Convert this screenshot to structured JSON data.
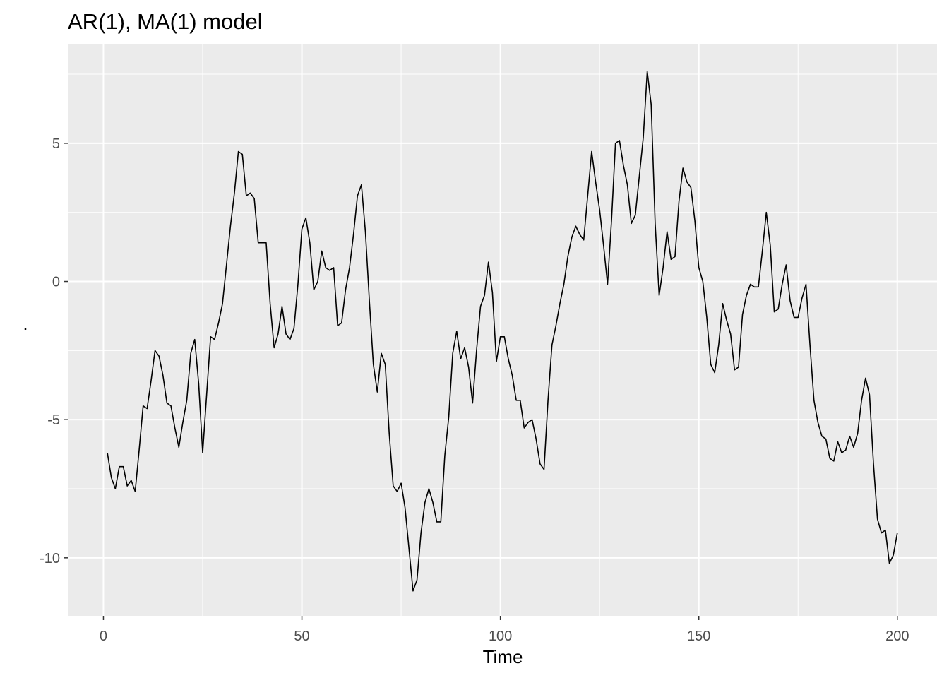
{
  "chart_data": {
    "type": "line",
    "title": "AR(1), MA(1) model",
    "xlabel": "Time",
    "ylabel": ".",
    "xlim": [
      -8.8,
      210
    ],
    "ylim": [
      -12.1,
      8.6
    ],
    "x_ticks": [
      0,
      50,
      100,
      150,
      200
    ],
    "x_tick_labels": [
      "0",
      "50",
      "100",
      "150",
      "200"
    ],
    "y_ticks": [
      -10,
      -5,
      0,
      5
    ],
    "y_tick_labels": [
      "-10",
      "-5",
      "0",
      "5"
    ],
    "grid": true,
    "legend": "none",
    "colors": {
      "panel": "#ebebeb",
      "grid": "#ffffff",
      "line": "#000000",
      "tick_label": "#4d4d4d",
      "tick_mark": "#333333"
    },
    "series": [
      {
        "x_start": 1,
        "x_step": 1,
        "values": [
          -6.2,
          -7.1,
          -7.5,
          -6.7,
          -6.7,
          -7.4,
          -7.2,
          -7.6,
          -6.1,
          -4.5,
          -4.6,
          -3.6,
          -2.5,
          -2.7,
          -3.4,
          -4.4,
          -4.5,
          -5.3,
          -6.0,
          -5.1,
          -4.3,
          -2.6,
          -2.1,
          -3.7,
          -6.2,
          -4.1,
          -2.0,
          -2.1,
          -1.5,
          -0.8,
          0.6,
          2.0,
          3.2,
          4.7,
          4.6,
          3.1,
          3.2,
          3.0,
          1.4,
          1.4,
          1.4,
          -0.8,
          -2.4,
          -1.9,
          -0.9,
          -1.9,
          -2.1,
          -1.7,
          -0.1,
          1.9,
          2.3,
          1.4,
          -0.3,
          0.0,
          1.1,
          0.5,
          0.4,
          0.5,
          -1.6,
          -1.5,
          -0.3,
          0.5,
          1.7,
          3.1,
          3.5,
          1.8,
          -0.7,
          -3.0,
          -4.0,
          -2.6,
          -3.0,
          -5.5,
          -7.4,
          -7.6,
          -7.3,
          -8.2,
          -9.7,
          -11.2,
          -10.8,
          -9.1,
          -8.0,
          -7.5,
          -8.0,
          -8.7,
          -8.7,
          -6.3,
          -4.9,
          -2.6,
          -1.8,
          -2.8,
          -2.4,
          -3.1,
          -4.4,
          -2.5,
          -0.9,
          -0.5,
          0.7,
          -0.4,
          -2.9,
          -2.0,
          -2.0,
          -2.8,
          -3.4,
          -4.3,
          -4.3,
          -5.3,
          -5.1,
          -5.0,
          -5.7,
          -6.6,
          -6.8,
          -4.3,
          -2.3,
          -1.6,
          -0.8,
          -0.1,
          0.9,
          1.6,
          2.0,
          1.7,
          1.5,
          3.1,
          4.7,
          3.6,
          2.6,
          1.3,
          -0.1,
          2.2,
          5.0,
          5.1,
          4.2,
          3.5,
          2.1,
          2.4,
          3.8,
          5.2,
          7.6,
          6.4,
          2.1,
          -0.5,
          0.5,
          1.8,
          0.8,
          0.9,
          2.9,
          4.1,
          3.6,
          3.4,
          2.2,
          0.5,
          0.0,
          -1.3,
          -3.0,
          -3.3,
          -2.3,
          -0.8,
          -1.4,
          -1.9,
          -3.2,
          -3.1,
          -1.2,
          -0.5,
          -0.1,
          -0.2,
          -0.2,
          1.1,
          2.5,
          1.3,
          -1.1,
          -1.0,
          -0.1,
          0.6,
          -0.7,
          -1.3,
          -1.3,
          -0.6,
          -0.1,
          -2.3,
          -4.3,
          -5.1,
          -5.6,
          -5.7,
          -6.4,
          -6.5,
          -5.8,
          -6.2,
          -6.1,
          -5.6,
          -6.0,
          -5.5,
          -4.3,
          -3.5,
          -4.1,
          -6.6,
          -8.6,
          -9.1,
          -9.0,
          -10.2,
          -9.9,
          -9.1
        ]
      }
    ]
  }
}
